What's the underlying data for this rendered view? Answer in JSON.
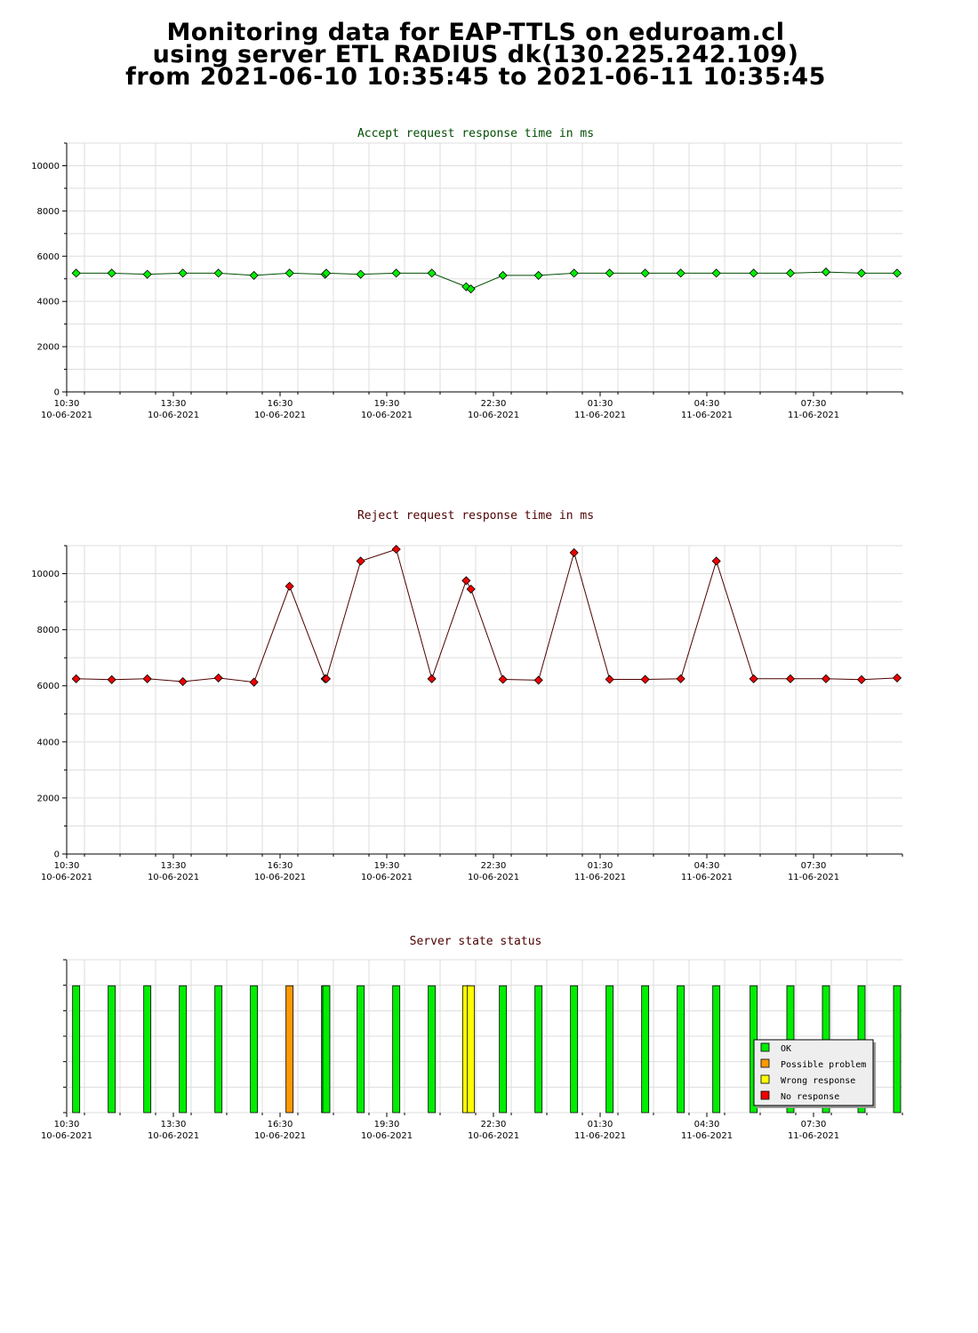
{
  "header": {
    "line1": "Monitoring data for EAP-TTLS on eduroam.cl",
    "line2": "using server ETL RADIUS dk(130.225.242.109)",
    "line3": "from 2021-06-10 10:35:45 to 2021-06-11 10:35:45"
  },
  "colors": {
    "accept_title": "#004d00",
    "reject_title": "#4d0000",
    "status_title": "#4d0000",
    "ok": "#00ee00",
    "possible": "#ff9900",
    "wrong": "#ffff00",
    "noresp": "#ee0000"
  },
  "chart_data": [
    {
      "type": "line",
      "title": "Accept request response time in ms",
      "xlim": [
        0,
        1410
      ],
      "ylim": [
        0,
        11000
      ],
      "yticks": [
        0,
        2000,
        4000,
        6000,
        8000,
        10000
      ],
      "xticks": [
        {
          "pos": 0,
          "time": "10:30",
          "date": "10-06-2021"
        },
        {
          "pos": 180,
          "time": "13:30",
          "date": "10-06-2021"
        },
        {
          "pos": 360,
          "time": "16:30",
          "date": "10-06-2021"
        },
        {
          "pos": 540,
          "time": "19:30",
          "date": "10-06-2021"
        },
        {
          "pos": 720,
          "time": "22:30",
          "date": "10-06-2021"
        },
        {
          "pos": 900,
          "time": "01:30",
          "date": "11-06-2021"
        },
        {
          "pos": 1080,
          "time": "04:30",
          "date": "11-06-2021"
        },
        {
          "pos": 1260,
          "time": "07:30",
          "date": "11-06-2021"
        }
      ],
      "marker_color": "#00ee00",
      "line_color": "#004d00",
      "series": [
        {
          "x": [
            16,
            76,
            136,
            196,
            256,
            316,
            376,
            436,
            438,
            496,
            556,
            616,
            674,
            682,
            736,
            796,
            856,
            916,
            976,
            1036,
            1096,
            1159,
            1221,
            1281,
            1341,
            1401
          ],
          "y": [
            5250,
            5250,
            5200,
            5250,
            5250,
            5150,
            5250,
            5200,
            5250,
            5200,
            5250,
            5250,
            4650,
            4550,
            5150,
            5150,
            5250,
            5250,
            5250,
            5250,
            5250,
            5250,
            5250,
            5300,
            5250,
            5250
          ]
        }
      ]
    },
    {
      "type": "line",
      "title": "Reject request response time in ms",
      "xlim": [
        0,
        1410
      ],
      "ylim": [
        0,
        11000
      ],
      "yticks": [
        0,
        2000,
        4000,
        6000,
        8000,
        10000
      ],
      "xticks": [
        {
          "pos": 0,
          "time": "10:30",
          "date": "10-06-2021"
        },
        {
          "pos": 180,
          "time": "13:30",
          "date": "10-06-2021"
        },
        {
          "pos": 360,
          "time": "16:30",
          "date": "10-06-2021"
        },
        {
          "pos": 540,
          "time": "19:30",
          "date": "10-06-2021"
        },
        {
          "pos": 720,
          "time": "22:30",
          "date": "10-06-2021"
        },
        {
          "pos": 900,
          "time": "01:30",
          "date": "11-06-2021"
        },
        {
          "pos": 1080,
          "time": "04:30",
          "date": "11-06-2021"
        },
        {
          "pos": 1260,
          "time": "07:30",
          "date": "11-06-2021"
        }
      ],
      "marker_color": "#ee0000",
      "line_color": "#4d0000",
      "series": [
        {
          "x": [
            16,
            76,
            136,
            196,
            256,
            316,
            376,
            436,
            438,
            496,
            556,
            616,
            674,
            682,
            736,
            796,
            856,
            916,
            976,
            1036,
            1096,
            1159,
            1221,
            1281,
            1341,
            1401
          ],
          "y": [
            6250,
            6220,
            6250,
            6150,
            6280,
            6130,
            9550,
            6250,
            6250,
            10450,
            10870,
            6250,
            9750,
            9450,
            6230,
            6200,
            10750,
            6230,
            6230,
            6250,
            10450,
            6250,
            6250,
            6250,
            6220,
            6280
          ]
        }
      ]
    },
    {
      "type": "bar",
      "title": "Server state status",
      "xlim": [
        0,
        1410
      ],
      "xticks": [
        {
          "pos": 0,
          "time": "10:30",
          "date": "10-06-2021"
        },
        {
          "pos": 180,
          "time": "13:30",
          "date": "10-06-2021"
        },
        {
          "pos": 360,
          "time": "16:30",
          "date": "10-06-2021"
        },
        {
          "pos": 540,
          "time": "19:30",
          "date": "10-06-2021"
        },
        {
          "pos": 720,
          "time": "22:30",
          "date": "10-06-2021"
        },
        {
          "pos": 900,
          "time": "01:30",
          "date": "11-06-2021"
        },
        {
          "pos": 1080,
          "time": "04:30",
          "date": "11-06-2021"
        },
        {
          "pos": 1260,
          "time": "07:30",
          "date": "11-06-2021"
        }
      ],
      "bar_level": 0.83,
      "x": [
        16,
        76,
        136,
        196,
        256,
        316,
        376,
        436,
        438,
        496,
        556,
        616,
        674,
        682,
        736,
        796,
        856,
        916,
        976,
        1036,
        1096,
        1159,
        1221,
        1281,
        1341,
        1401
      ],
      "status": [
        "ok",
        "ok",
        "ok",
        "ok",
        "ok",
        "ok",
        "possible",
        "ok",
        "ok",
        "ok",
        "ok",
        "ok",
        "wrong",
        "wrong",
        "ok",
        "ok",
        "ok",
        "ok",
        "ok",
        "ok",
        "ok",
        "ok",
        "ok",
        "ok",
        "ok",
        "ok"
      ],
      "legend": [
        {
          "key": "ok",
          "label": "OK"
        },
        {
          "key": "possible",
          "label": "Possible problem"
        },
        {
          "key": "wrong",
          "label": "Wrong response"
        },
        {
          "key": "noresp",
          "label": "No response"
        }
      ],
      "legend_position": "bottom-right"
    }
  ]
}
